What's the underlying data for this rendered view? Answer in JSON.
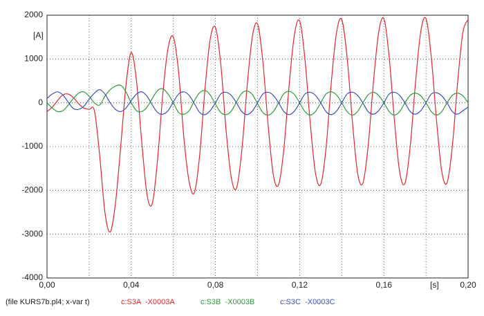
{
  "chart_data": {
    "type": "line",
    "y_unit": "[A]",
    "x_unit": "[s]",
    "footer": "(file KURS7b.pl4; x-var t)",
    "x": [
      0,
      0.0025,
      0.005,
      0.0075,
      0.01,
      0.0125,
      0.015,
      0.0175,
      0.02,
      0.0225,
      0.025,
      0.0275,
      0.03,
      0.0325,
      0.035,
      0.0375,
      0.04,
      0.0425,
      0.045,
      0.0475,
      0.05,
      0.0525,
      0.055,
      0.0575,
      0.06,
      0.0625,
      0.065,
      0.0675,
      0.07,
      0.0725,
      0.075,
      0.0775,
      0.08,
      0.0825,
      0.085,
      0.0875,
      0.09,
      0.0925,
      0.095,
      0.0975,
      0.1,
      0.1025,
      0.105,
      0.1075,
      0.11,
      0.1125,
      0.115,
      0.1175,
      0.12,
      0.1225,
      0.125,
      0.1275,
      0.13,
      0.1325,
      0.135,
      0.1375,
      0.14,
      0.1425,
      0.145,
      0.1475,
      0.15,
      0.1525,
      0.155,
      0.1575,
      0.16,
      0.1625,
      0.165,
      0.1675,
      0.17,
      0.1725,
      0.175,
      0.1775,
      0.18,
      0.1825,
      0.185,
      0.1875,
      0.19,
      0.1925,
      0.195,
      0.1975,
      0.2
    ],
    "series": [
      {
        "name": "c:S3A  -X0003A",
        "color": "#e3262e",
        "values": [
          -200,
          -100,
          50,
          180,
          200,
          120,
          -20,
          -120,
          -150,
          -180,
          -1200,
          -2500,
          -2950,
          -2300,
          -1000,
          400,
          1150,
          500,
          -900,
          -2100,
          -2300,
          -1300,
          200,
          1250,
          1500,
          700,
          -800,
          -1800,
          -2050,
          -1200,
          300,
          1450,
          1720,
          900,
          -600,
          -1700,
          -1950,
          -1100,
          350,
          1500,
          1800,
          950,
          -500,
          -1650,
          -1870,
          -1050,
          400,
          1550,
          1870,
          1000,
          -450,
          -1600,
          -1860,
          -1050,
          450,
          1600,
          1900,
          1050,
          -400,
          -1600,
          -1840,
          -1000,
          450,
          1600,
          1920,
          1050,
          -400,
          -1580,
          -1840,
          -1000,
          450,
          1620,
          1920,
          1050,
          -400,
          -1570,
          -1830,
          -1000,
          450,
          1600,
          1900
        ]
      },
      {
        "name": "c:S3B  -X0003B",
        "color": "#2e9a3c",
        "values": [
          0,
          -120,
          -200,
          -180,
          -60,
          100,
          220,
          250,
          150,
          0,
          -50,
          150,
          300,
          380,
          400,
          250,
          0,
          -180,
          -200,
          -100,
          100,
          280,
          320,
          200,
          0,
          -220,
          -260,
          -180,
          50,
          230,
          280,
          180,
          -30,
          -220,
          -270,
          -190,
          20,
          220,
          270,
          190,
          -20,
          -220,
          -280,
          -200,
          0,
          210,
          260,
          190,
          0,
          -200,
          -280,
          -200,
          0,
          200,
          250,
          180,
          0,
          -200,
          -280,
          -200,
          0,
          180,
          240,
          170,
          0,
          -200,
          -280,
          -200,
          0,
          170,
          220,
          160,
          0,
          -200,
          -280,
          -200,
          0,
          170,
          220,
          160,
          0
        ]
      },
      {
        "name": "c:S3C  -X0003C",
        "color": "#3a4fc2",
        "values": [
          100,
          200,
          250,
          180,
          20,
          -130,
          -150,
          -80,
          80,
          220,
          300,
          200,
          0,
          -150,
          -200,
          -120,
          50,
          200,
          250,
          150,
          -50,
          -220,
          -260,
          -180,
          20,
          200,
          250,
          170,
          -20,
          -220,
          -270,
          -180,
          0,
          200,
          240,
          170,
          0,
          -200,
          -270,
          -190,
          0,
          200,
          240,
          170,
          0,
          -200,
          -270,
          -190,
          0,
          200,
          240,
          170,
          0,
          -200,
          -270,
          -190,
          0,
          200,
          240,
          170,
          0,
          -200,
          -260,
          -180,
          0,
          200,
          240,
          170,
          0,
          -200,
          -260,
          -180,
          0,
          200,
          230,
          160,
          0,
          -200,
          -260,
          -180,
          -100
        ]
      }
    ],
    "xlim": [
      0,
      0.2
    ],
    "ylim": [
      -4000,
      2000
    ],
    "xticks": [
      {
        "value": 0,
        "label": "0,00"
      },
      {
        "value": 0.04,
        "label": "0,04"
      },
      {
        "value": 0.08,
        "label": "0,08"
      },
      {
        "value": 0.12,
        "label": "0,12"
      },
      {
        "value": 0.16,
        "label": "0,16"
      },
      {
        "value": 0.2,
        "label": "0,20"
      }
    ],
    "xminor": [
      0.02,
      0.06,
      0.1,
      0.14,
      0.18
    ],
    "yticks": [
      -4000,
      -3000,
      -2000,
      -1000,
      0,
      1000,
      2000
    ],
    "grid": true
  }
}
